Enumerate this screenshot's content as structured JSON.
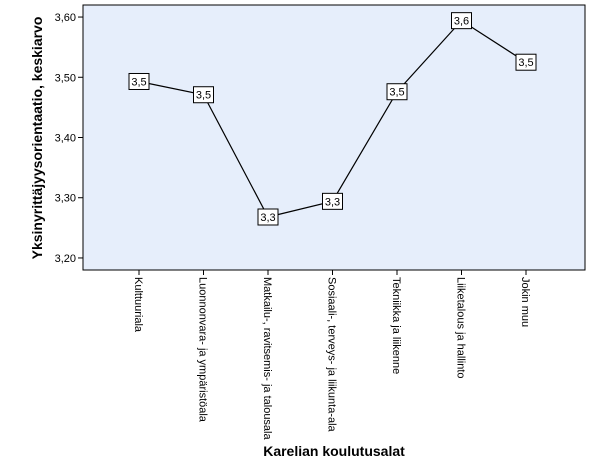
{
  "chart_data": {
    "type": "line",
    "title": "",
    "xlabel": "Karelian koulutusalat",
    "ylabel": "Yksinyrittäjyysorientaatio, keskiarvo",
    "categories": [
      "Kulttuuriala",
      "Luonnonvara- ja ympäristöala",
      "Matkailu-, ravitsemis- ja talousala",
      "Sosiaali-, terveys- ja liikunta-ala",
      "Tekniikka ja liikenne",
      "Liiketalous ja hallinto",
      "Jokin muu"
    ],
    "values": [
      3.493,
      3.471,
      3.268,
      3.294,
      3.476,
      3.594,
      3.525
    ],
    "data_labels": [
      "3,5",
      "3,5",
      "3,3",
      "3,3",
      "3,5",
      "3,6",
      "3,5"
    ],
    "ylim": [
      3.18,
      3.62
    ],
    "yticks": [
      3.2,
      3.3,
      3.4,
      3.5,
      3.6
    ],
    "ytick_labels": [
      "3,20",
      "3,30",
      "3,40",
      "3,50",
      "3,60"
    ],
    "grid": false,
    "colors": {
      "plot_background": "#e6eefb",
      "line": "#000000"
    }
  }
}
